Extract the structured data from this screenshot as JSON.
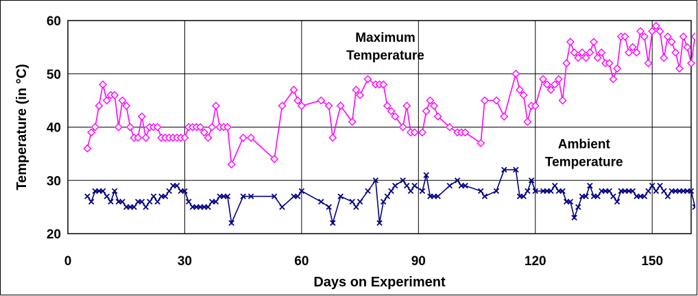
{
  "chart_data": {
    "type": "line",
    "title": "",
    "xlabel": "Days on Experiment",
    "ylabel": "Temperature (in °C)",
    "xlim": [
      0,
      160
    ],
    "ylim": [
      20,
      60
    ],
    "xticks": [
      0,
      30,
      60,
      90,
      120,
      150
    ],
    "yticks": [
      20,
      30,
      40,
      50,
      60
    ],
    "grid": true,
    "legend": "none",
    "annotations": [
      {
        "lines": [
          "Maximum",
          "Temperature"
        ],
        "x": 81.5,
        "y": 56
      },
      {
        "lines": [
          "Ambient",
          "Temperature"
        ],
        "x": 132.5,
        "y": 36
      }
    ],
    "series": [
      {
        "color": "#ff00ff",
        "marker": "diamond",
        "x": [
          5,
          6,
          7,
          8,
          9,
          10,
          11,
          12,
          13,
          14,
          15,
          16,
          17,
          18,
          19,
          20,
          21,
          22,
          23,
          24,
          25,
          26,
          27,
          28,
          29,
          30,
          31,
          32,
          33,
          34,
          35,
          36,
          37,
          38,
          39,
          40,
          41,
          42,
          45,
          47,
          53,
          55,
          58,
          59,
          60,
          65,
          67,
          68,
          70,
          73,
          74,
          75,
          77,
          79,
          80,
          81,
          82,
          83,
          84,
          86,
          87,
          88,
          89,
          91,
          92,
          93,
          94,
          95,
          98,
          100,
          101,
          102,
          106,
          107,
          110,
          112,
          115,
          116,
          117,
          118,
          119,
          120,
          122,
          123,
          124,
          125,
          126,
          127,
          128,
          129,
          130,
          131,
          132,
          133,
          134,
          135,
          136,
          137,
          138,
          139,
          140,
          141,
          142,
          143,
          144,
          145,
          146,
          147,
          148,
          149,
          150,
          151,
          152,
          153,
          154,
          155,
          156,
          157,
          158,
          159,
          160,
          161
        ],
        "y": [
          36,
          39,
          40,
          44,
          48,
          45,
          46,
          46,
          40,
          45,
          44,
          40,
          38,
          38,
          42,
          38,
          40,
          40,
          40,
          38,
          38,
          38,
          38,
          38,
          38,
          38,
          40,
          40,
          40,
          40,
          39,
          38,
          40,
          44,
          40,
          40,
          40,
          33,
          38,
          38,
          34,
          44,
          47,
          45,
          44,
          45,
          44,
          38,
          44,
          41,
          47,
          46,
          49,
          48,
          48,
          48,
          44,
          43,
          42,
          40,
          44,
          39,
          39,
          39,
          43,
          45,
          44,
          42,
          40,
          39,
          39,
          39,
          37,
          45,
          45,
          42,
          50,
          47,
          46,
          41,
          44,
          44,
          49,
          48,
          47,
          48,
          49,
          45,
          52,
          56,
          54,
          53,
          54,
          53,
          54,
          56,
          53,
          54,
          52,
          52,
          49,
          51,
          57,
          57,
          54,
          55,
          54,
          58,
          57,
          52,
          58,
          59,
          58,
          53,
          57,
          56,
          54,
          51,
          57,
          55,
          52,
          57
        ]
      },
      {
        "color": "#000080",
        "marker": "x",
        "x": [
          5,
          6,
          7,
          8,
          9,
          10,
          11,
          12,
          13,
          14,
          15,
          16,
          17,
          18,
          19,
          20,
          21,
          22,
          23,
          24,
          25,
          26,
          27,
          28,
          29,
          30,
          31,
          32,
          33,
          34,
          35,
          36,
          37,
          38,
          39,
          40,
          41,
          42,
          45,
          47,
          53,
          55,
          58,
          59,
          60,
          65,
          67,
          68,
          70,
          73,
          74,
          75,
          77,
          79,
          80,
          81,
          82,
          83,
          84,
          86,
          87,
          88,
          89,
          91,
          92,
          93,
          94,
          95,
          98,
          100,
          101,
          102,
          106,
          107,
          110,
          112,
          115,
          116,
          117,
          118,
          119,
          120,
          122,
          123,
          124,
          125,
          126,
          127,
          128,
          129,
          130,
          131,
          132,
          133,
          134,
          135,
          136,
          137,
          138,
          139,
          140,
          141,
          142,
          143,
          144,
          145,
          146,
          147,
          148,
          149,
          150,
          151,
          152,
          153,
          154,
          155,
          156,
          157,
          158,
          159,
          160,
          161
        ],
        "y": [
          27,
          26,
          28,
          28,
          28,
          27,
          26,
          28,
          26,
          26,
          25,
          25,
          25,
          26,
          26,
          25,
          26,
          27,
          26,
          27,
          27,
          28,
          29,
          29,
          28,
          28,
          26,
          25,
          25,
          25,
          25,
          25,
          26,
          26,
          27,
          27,
          27,
          22,
          27,
          27,
          27,
          25,
          27,
          27,
          28,
          26,
          25,
          22,
          27,
          26,
          25,
          26,
          28,
          30,
          22,
          26,
          27,
          28,
          29,
          30,
          29,
          28,
          29,
          28,
          31,
          27,
          27,
          27,
          29,
          30,
          29,
          29,
          28,
          27,
          28,
          32,
          32,
          27,
          27,
          28,
          30,
          28,
          28,
          28,
          28,
          29,
          28,
          28,
          26,
          26,
          23,
          25,
          27,
          27,
          29,
          27,
          27,
          28,
          28,
          28,
          27,
          26,
          28,
          28,
          28,
          28,
          27,
          27,
          27,
          28,
          29,
          28,
          29,
          28,
          27,
          28,
          28,
          28,
          28,
          28,
          28,
          25
        ]
      }
    ]
  }
}
